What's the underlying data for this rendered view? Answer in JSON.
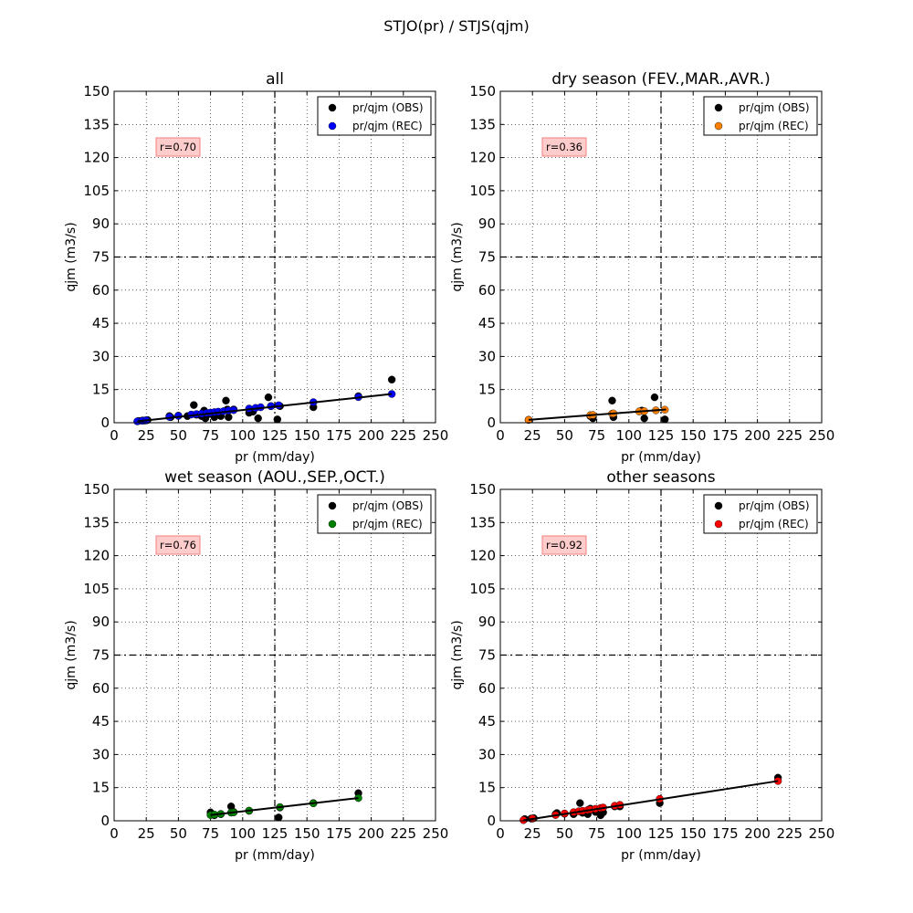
{
  "figure": {
    "title": "STJO(pr) / STJS(qjm)"
  },
  "chart_data": [
    {
      "type": "scatter",
      "title": "all",
      "xlabel": "pr (mm/day)",
      "ylabel": "qjm (m3/s)",
      "xlim": [
        0,
        250
      ],
      "ylim": [
        0,
        150
      ],
      "xticks": [
        0,
        25,
        50,
        75,
        100,
        125,
        150,
        175,
        200,
        225,
        250
      ],
      "yticks": [
        0,
        15,
        30,
        45,
        60,
        75,
        90,
        105,
        120,
        135,
        150
      ],
      "grid": true,
      "legend_position": "top-right",
      "annotation": "r=0.70",
      "ref_lines": {
        "x": 125,
        "y": 75
      },
      "fit_line": [
        [
          18,
          0.6
        ],
        [
          216,
          13.0
        ]
      ],
      "series": [
        {
          "name": "pr/qjm (OBS)",
          "color": "#000000",
          "points": [
            [
              19,
              0.8
            ],
            [
              22,
              1.0
            ],
            [
              24,
              1.0
            ],
            [
              26,
              1.2
            ],
            [
              43,
              3.0
            ],
            [
              44,
              2.5
            ],
            [
              50,
              3.2
            ],
            [
              57,
              3.0
            ],
            [
              62,
              8.0
            ],
            [
              64,
              3.6
            ],
            [
              68,
              3.0
            ],
            [
              70,
              5.5
            ],
            [
              71,
              2.0
            ],
            [
              74,
              4.0
            ],
            [
              78,
              2.5
            ],
            [
              80,
              3.8
            ],
            [
              83,
              3.0
            ],
            [
              87,
              10.0
            ],
            [
              88,
              6.0
            ],
            [
              89,
              2.5
            ],
            [
              93,
              6.0
            ],
            [
              105,
              4.5
            ],
            [
              108,
              5.0
            ],
            [
              112,
              2.0
            ],
            [
              120,
              11.5
            ],
            [
              122,
              7.5
            ],
            [
              127,
              1.5
            ],
            [
              129,
              7.5
            ],
            [
              155,
              7.0
            ],
            [
              190,
              12.0
            ],
            [
              216,
              19.5
            ]
          ]
        },
        {
          "name": "pr/qjm (REC)",
          "color": "#0000ff",
          "points": [
            [
              18,
              0.6
            ],
            [
              22,
              0.9
            ],
            [
              25,
              1.1
            ],
            [
              43,
              2.6
            ],
            [
              50,
              3.1
            ],
            [
              60,
              3.7
            ],
            [
              64,
              3.9
            ],
            [
              68,
              4.1
            ],
            [
              72,
              4.4
            ],
            [
              75,
              4.6
            ],
            [
              78,
              4.8
            ],
            [
              81,
              5.0
            ],
            [
              85,
              5.2
            ],
            [
              89,
              5.5
            ],
            [
              93,
              5.7
            ],
            [
              105,
              6.4
            ],
            [
              110,
              6.7
            ],
            [
              114,
              7.0
            ],
            [
              122,
              7.5
            ],
            [
              128,
              7.9
            ],
            [
              155,
              9.3
            ],
            [
              190,
              11.6
            ],
            [
              216,
              13.0
            ]
          ]
        }
      ]
    },
    {
      "type": "scatter",
      "title": "dry season (FEV.,MAR.,AVR.)",
      "xlabel": "pr (mm/day)",
      "ylabel": "qjm (m3/s)",
      "xlim": [
        0,
        250
      ],
      "ylim": [
        0,
        150
      ],
      "xticks": [
        0,
        25,
        50,
        75,
        100,
        125,
        150,
        175,
        200,
        225,
        250
      ],
      "yticks": [
        0,
        15,
        30,
        45,
        60,
        75,
        90,
        105,
        120,
        135,
        150
      ],
      "grid": true,
      "legend_position": "top-right",
      "annotation": "r=0.36",
      "ref_lines": {
        "x": 125,
        "y": 75
      },
      "fit_line": [
        [
          22,
          1.3
        ],
        [
          129,
          6.0
        ]
      ],
      "series": [
        {
          "name": "pr/qjm (OBS)",
          "color": "#000000",
          "points": [
            [
              22,
              1.3
            ],
            [
              70,
              3.0
            ],
            [
              72,
              2.0
            ],
            [
              87,
              10.0
            ],
            [
              88,
              2.5
            ],
            [
              110,
              5.5
            ],
            [
              112,
              2.0
            ],
            [
              120,
              11.5
            ],
            [
              128,
              1.5
            ]
          ]
        },
        {
          "name": "pr/qjm (REC)",
          "color": "#ff8000",
          "points": [
            [
              22,
              1.3
            ],
            [
              70,
              3.4
            ],
            [
              72,
              3.5
            ],
            [
              87,
              4.1
            ],
            [
              88,
              4.2
            ],
            [
              108,
              5.1
            ],
            [
              112,
              5.2
            ],
            [
              121,
              5.6
            ],
            [
              128,
              5.9
            ]
          ]
        }
      ]
    },
    {
      "type": "scatter",
      "title": "wet season (AOU.,SEP.,OCT.)",
      "xlabel": "pr (mm/day)",
      "ylabel": "qjm (m3/s)",
      "xlim": [
        0,
        250
      ],
      "ylim": [
        0,
        150
      ],
      "xticks": [
        0,
        25,
        50,
        75,
        100,
        125,
        150,
        175,
        200,
        225,
        250
      ],
      "yticks": [
        0,
        15,
        30,
        45,
        60,
        75,
        90,
        105,
        120,
        135,
        150
      ],
      "grid": true,
      "legend_position": "top-right",
      "annotation": "r=0.76",
      "ref_lines": {
        "x": 125,
        "y": 75
      },
      "fit_line": [
        [
          75,
          2.6
        ],
        [
          190,
          10.3
        ]
      ],
      "series": [
        {
          "name": "pr/qjm (OBS)",
          "color": "#000000",
          "points": [
            [
              75,
              3.8
            ],
            [
              78,
              2.5
            ],
            [
              83,
              3.0
            ],
            [
              91,
              6.5
            ],
            [
              93,
              4.0
            ],
            [
              105,
              4.5
            ],
            [
              128,
              1.5
            ],
            [
              129,
              6.0
            ],
            [
              155,
              8.0
            ],
            [
              190,
              12.5
            ]
          ]
        },
        {
          "name": "pr/qjm (REC)",
          "color": "#008000",
          "points": [
            [
              75,
              2.6
            ],
            [
              78,
              2.8
            ],
            [
              83,
              3.1
            ],
            [
              91,
              3.7
            ],
            [
              93,
              3.8
            ],
            [
              105,
              4.6
            ],
            [
              129,
              6.2
            ],
            [
              155,
              7.9
            ],
            [
              190,
              10.3
            ]
          ]
        }
      ]
    },
    {
      "type": "scatter",
      "title": "other seasons",
      "xlabel": "pr (mm/day)",
      "ylabel": "qjm (m3/s)",
      "xlim": [
        0,
        250
      ],
      "ylim": [
        0,
        150
      ],
      "xticks": [
        0,
        25,
        50,
        75,
        100,
        125,
        150,
        175,
        200,
        225,
        250
      ],
      "yticks": [
        0,
        15,
        30,
        45,
        60,
        75,
        90,
        105,
        120,
        135,
        150
      ],
      "grid": true,
      "legend_position": "top-right",
      "annotation": "r=0.92",
      "ref_lines": {
        "x": 125,
        "y": 75
      },
      "fit_line": [
        [
          18,
          0.2
        ],
        [
          216,
          18.0
        ]
      ],
      "series": [
        {
          "name": "pr/qjm (OBS)",
          "color": "#000000",
          "points": [
            [
              19,
              0.8
            ],
            [
              24,
              1.0
            ],
            [
              26,
              1.2
            ],
            [
              43,
              3.0
            ],
            [
              44,
              3.5
            ],
            [
              50,
              3.2
            ],
            [
              57,
              3.0
            ],
            [
              62,
              8.0
            ],
            [
              64,
              3.6
            ],
            [
              68,
              3.0
            ],
            [
              70,
              5.5
            ],
            [
              74,
              4.0
            ],
            [
              78,
              2.5
            ],
            [
              80,
              3.8
            ],
            [
              89,
              6.5
            ],
            [
              93,
              6.5
            ],
            [
              124,
              8.0
            ],
            [
              216,
              19.5
            ]
          ]
        },
        {
          "name": "pr/qjm (REC)",
          "color": "#ff0000",
          "points": [
            [
              18,
              0.3
            ],
            [
              25,
              1.0
            ],
            [
              43,
              2.6
            ],
            [
              50,
              3.3
            ],
            [
              57,
              3.9
            ],
            [
              61,
              4.3
            ],
            [
              64,
              4.5
            ],
            [
              68,
              4.9
            ],
            [
              70,
              5.1
            ],
            [
              74,
              5.4
            ],
            [
              78,
              5.8
            ],
            [
              80,
              6.0
            ],
            [
              89,
              6.8
            ],
            [
              93,
              7.2
            ],
            [
              124,
              9.9
            ],
            [
              216,
              18.0
            ]
          ]
        }
      ]
    }
  ]
}
